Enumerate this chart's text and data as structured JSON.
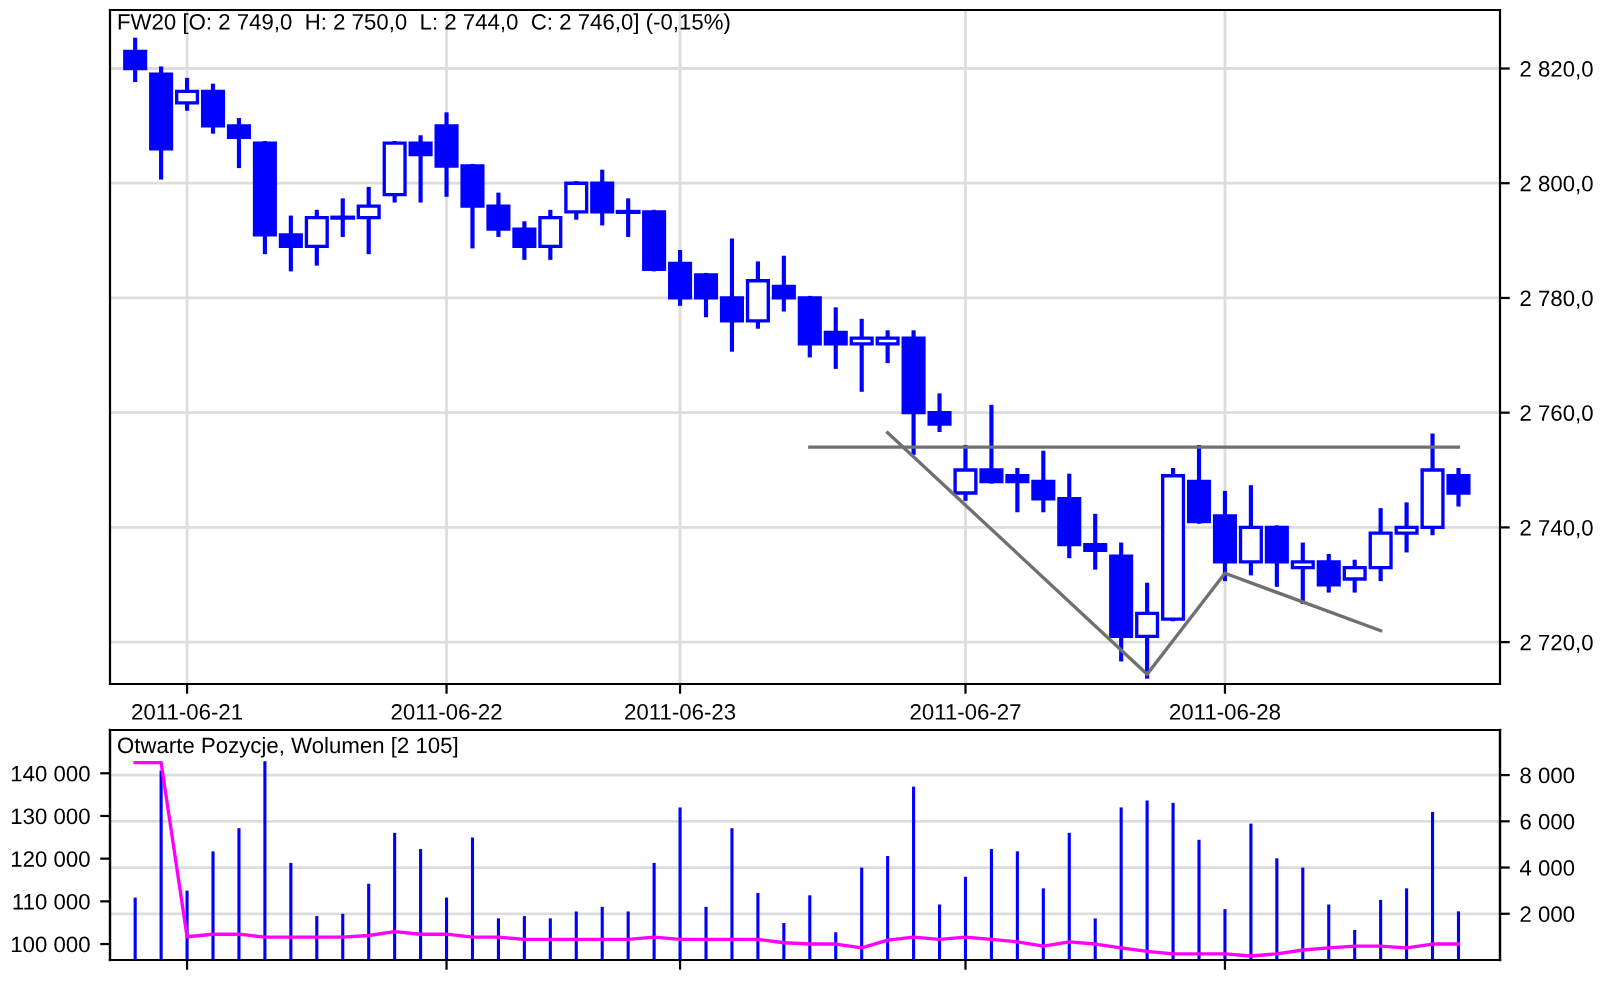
{
  "chart_data": [
    {
      "type": "candlestick",
      "title": "FW20 [O: 2 749,0  H: 2 750,0  L: 2 744,0  C: 2 746,0] (-0,15%)",
      "categories": [
        null,
        null,
        "2011-06-21",
        null,
        null,
        null,
        null,
        null,
        null,
        null,
        null,
        null,
        "2011-06-22",
        null,
        null,
        null,
        null,
        null,
        null,
        null,
        null,
        "2011-06-23",
        null,
        null,
        null,
        null,
        null,
        null,
        null,
        null,
        null,
        null,
        "2011-06-27",
        null,
        null,
        null,
        null,
        null,
        null,
        null,
        null,
        null,
        "2011-06-28",
        null,
        null,
        null,
        null,
        null,
        null,
        null,
        null,
        null
      ],
      "color": "#0000ff",
      "ohlc": [
        [
          2823,
          2825,
          2818,
          2820
        ],
        [
          2819,
          2820,
          2801,
          2806
        ],
        [
          2814,
          2818,
          2813,
          2816
        ],
        [
          2816,
          2817,
          2809,
          2810
        ],
        [
          2810,
          2811,
          2803,
          2808
        ],
        [
          2807,
          2807,
          2788,
          2791
        ],
        [
          2791,
          2794,
          2785,
          2789
        ],
        [
          2789,
          2795,
          2786,
          2794
        ],
        [
          2794,
          2797,
          2791,
          2794
        ],
        [
          2794,
          2799,
          2788,
          2796
        ],
        [
          2798,
          2807,
          2797,
          2807
        ],
        [
          2807,
          2808,
          2797,
          2805
        ],
        [
          2810,
          2812,
          2798,
          2803
        ],
        [
          2803,
          2803,
          2789,
          2796
        ],
        [
          2796,
          2798,
          2791,
          2792
        ],
        [
          2792,
          2793,
          2787,
          2789
        ],
        [
          2789,
          2795,
          2787,
          2794
        ],
        [
          2795,
          2800,
          2794,
          2800
        ],
        [
          2800,
          2802,
          2793,
          2795
        ],
        [
          2795,
          2797,
          2791,
          2795
        ],
        [
          2795,
          2795,
          2785,
          2785
        ],
        [
          2786,
          2788,
          2779,
          2780
        ],
        [
          2784,
          2784,
          2777,
          2780
        ],
        [
          2780,
          2790,
          2771,
          2776
        ],
        [
          2776,
          2786,
          2775,
          2783
        ],
        [
          2782,
          2787,
          2778,
          2780
        ],
        [
          2780,
          2780,
          2770,
          2772
        ],
        [
          2774,
          2778,
          2768,
          2772
        ],
        [
          2772,
          2776,
          2764,
          2773
        ],
        [
          2772,
          2774,
          2769,
          2773
        ],
        [
          2773,
          2774,
          2753,
          2760
        ],
        [
          2760,
          2763,
          2757,
          2758
        ],
        [
          2746,
          2754,
          2745,
          2750
        ],
        [
          2750,
          2761,
          2748,
          2748
        ],
        [
          2749,
          2750,
          2743,
          2748
        ],
        [
          2748,
          2753,
          2743,
          2745
        ],
        [
          2745,
          2749,
          2735,
          2737
        ],
        [
          2737,
          2742,
          2733,
          2736
        ],
        [
          2735,
          2737,
          2717,
          2721
        ],
        [
          2721,
          2730,
          2714,
          2725
        ],
        [
          2724,
          2750,
          2724,
          2749
        ],
        [
          2748,
          2754,
          2741,
          2741
        ],
        [
          2742,
          2746,
          2731,
          2734
        ],
        [
          2734,
          2747,
          2732,
          2740
        ],
        [
          2740,
          2740,
          2730,
          2734
        ],
        [
          2733,
          2737,
          2727,
          2734
        ],
        [
          2734,
          2735,
          2729,
          2730
        ],
        [
          2731,
          2734,
          2729,
          2733
        ],
        [
          2733,
          2743,
          2731,
          2739
        ],
        [
          2739,
          2744,
          2736,
          2740
        ],
        [
          2740,
          2756,
          2739,
          2750
        ],
        [
          2749,
          2750,
          2744,
          2746
        ]
      ],
      "series": [
        {
          "type": "line",
          "color": "#707070",
          "values": [
            null,
            null,
            null,
            null,
            null,
            null,
            null,
            null,
            null,
            null,
            null,
            null,
            null,
            null,
            null,
            null,
            null,
            null,
            null,
            null,
            null,
            null,
            null,
            null,
            null,
            null,
            2754,
            null,
            null,
            null,
            null,
            null,
            null,
            null,
            null,
            null,
            null,
            null,
            null,
            null,
            null,
            null,
            null,
            null,
            null,
            null,
            null,
            null,
            null,
            null,
            null,
            2754
          ]
        },
        {
          "type": "line",
          "color": "#707070",
          "values": [
            null,
            null,
            null,
            null,
            null,
            null,
            null,
            null,
            null,
            null,
            null,
            null,
            null,
            null,
            null,
            null,
            null,
            null,
            null,
            null,
            null,
            null,
            null,
            null,
            null,
            null,
            null,
            null,
            null,
            2756.5,
            null,
            null,
            null,
            null,
            null,
            null,
            null,
            null,
            null,
            2714.4,
            null,
            null,
            2732,
            null,
            null,
            null,
            null,
            null,
            2722,
            null,
            null,
            null
          ]
        }
      ],
      "ylim": [
        2712.7,
        2830.2
      ],
      "yticks": [
        {
          "value": 2720,
          "label": "2 720,0"
        },
        {
          "value": 2740,
          "label": "2 740,0"
        },
        {
          "value": 2760,
          "label": "2 760,0"
        },
        {
          "value": 2780,
          "label": "2 780,0"
        },
        {
          "value": 2800,
          "label": "2 800,0"
        },
        {
          "value": 2820,
          "label": "2 820,0"
        }
      ],
      "grid": true
    },
    {
      "type": "bar",
      "title": "Otwarte Pozycje, Wolumen [2 105]",
      "categories": [
        null,
        null,
        "2011-06-21",
        null,
        null,
        null,
        null,
        null,
        null,
        null,
        null,
        null,
        "2011-06-22",
        null,
        null,
        null,
        null,
        null,
        null,
        null,
        null,
        "2011-06-23",
        null,
        null,
        null,
        null,
        null,
        null,
        null,
        null,
        null,
        null,
        "2011-06-27",
        null,
        null,
        null,
        null,
        null,
        null,
        null,
        null,
        null,
        "2011-06-28",
        null,
        null,
        null,
        null,
        null,
        null,
        null,
        null,
        null
      ],
      "tick_labels": "y",
      "series": [
        {
          "type": "bar",
          "axis": "y2",
          "color": "#0000ff",
          "values": [
            2700,
            8200,
            3000,
            4700,
            5700,
            8600,
            4200,
            1900,
            2000,
            3300,
            5500,
            4800,
            2700,
            5300,
            1800,
            1900,
            1800,
            2100,
            2300,
            2100,
            4200,
            6600,
            2300,
            5700,
            2900,
            1600,
            2800,
            1200,
            4000,
            4500,
            7500,
            2400,
            3600,
            4800,
            4700,
            3100,
            5500,
            1800,
            6600,
            6900,
            6800,
            5200,
            2200,
            5900,
            4400,
            4000,
            2400,
            1300,
            2600,
            3100,
            6400,
            2105
          ]
        },
        {
          "type": "line",
          "color": "#ff00ff",
          "values": [
            142500,
            142500,
            101700,
            102300,
            102300,
            101600,
            101600,
            101600,
            101600,
            102000,
            102900,
            102300,
            102300,
            101600,
            101600,
            101100,
            101100,
            101100,
            101100,
            101100,
            101600,
            101100,
            101100,
            101100,
            101100,
            100300,
            100000,
            100000,
            99100,
            100900,
            101600,
            101100,
            101600,
            101100,
            100500,
            99500,
            100500,
            100000,
            99100,
            98300,
            97700,
            97700,
            97700,
            97200,
            97700,
            98600,
            99100,
            99500,
            99500,
            99100,
            100000,
            100000
          ]
        }
      ],
      "ylim": [
        96260,
        150140
      ],
      "yticks": [
        {
          "value": 100000,
          "label": "100 000"
        },
        {
          "value": 110000,
          "label": "110 000"
        },
        {
          "value": 120000,
          "label": "120 000"
        },
        {
          "value": 130000,
          "label": "130 000"
        },
        {
          "value": 140000,
          "label": "140 000"
        }
      ],
      "y2lim": [
        0,
        9950
      ],
      "y2ticks": [
        {
          "value": 2000,
          "label": "2 000"
        },
        {
          "value": 4000,
          "label": "4 000"
        },
        {
          "value": 6000,
          "label": "6 000"
        },
        {
          "value": 8000,
          "label": "8 000"
        }
      ],
      "grid": true
    }
  ]
}
